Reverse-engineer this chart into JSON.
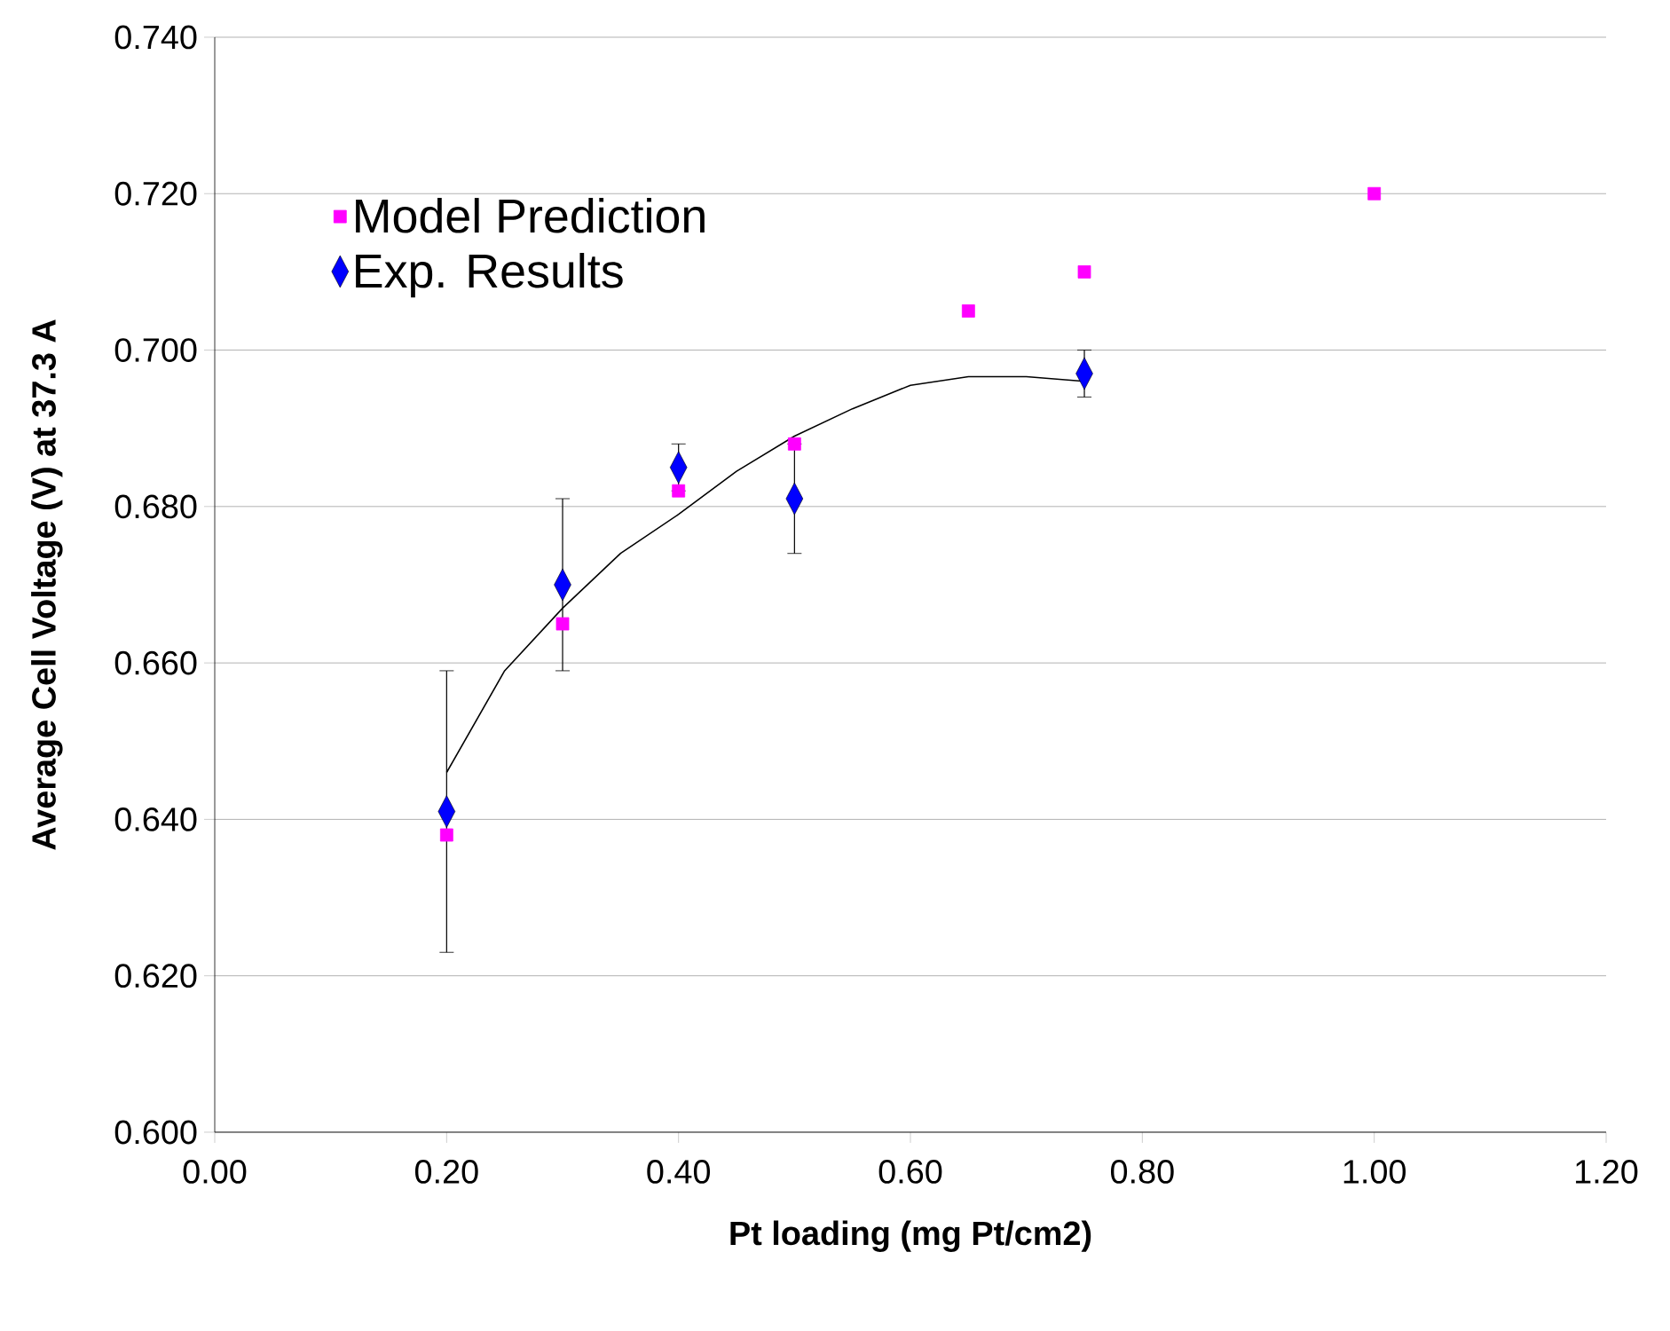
{
  "chart_data": {
    "type": "scatter",
    "xlabel": "Pt loading (mg Pt/cm2)",
    "ylabel": "Average Cell Voltage (V) at 37.3 A",
    "xlim": [
      0,
      1.2
    ],
    "ylim": [
      0.6,
      0.74
    ],
    "xticks": [
      {
        "value": 0,
        "label": "0.00"
      },
      {
        "value": 0.2,
        "label": "0.20"
      },
      {
        "value": 0.4,
        "label": "0.40"
      },
      {
        "value": 0.6,
        "label": "0.60"
      },
      {
        "value": 0.8,
        "label": "0.80"
      },
      {
        "value": 1.0,
        "label": "1.00"
      },
      {
        "value": 1.2,
        "label": "1.20"
      }
    ],
    "yticks": [
      {
        "value": 0.6,
        "label": "0.600"
      },
      {
        "value": 0.62,
        "label": "0.620"
      },
      {
        "value": 0.64,
        "label": "0.640"
      },
      {
        "value": 0.66,
        "label": "0.660"
      },
      {
        "value": 0.68,
        "label": "0.680"
      },
      {
        "value": 0.7,
        "label": "0.700"
      },
      {
        "value": 0.72,
        "label": "0.720"
      },
      {
        "value": 0.74,
        "label": "0.740"
      }
    ],
    "grid": "y",
    "legend": "top left",
    "series": [
      {
        "name": "Model Prediction",
        "marker": "square",
        "color": "#ff00ff",
        "x": [
          0.2,
          0.3,
          0.4,
          0.5,
          0.65,
          0.75,
          1.0
        ],
        "values": [
          0.638,
          0.665,
          0.682,
          0.688,
          0.705,
          0.71,
          0.72
        ]
      },
      {
        "name": "Exp. Results",
        "marker": "diamond",
        "color": "#0000ff",
        "x": [
          0.2,
          0.3,
          0.4,
          0.5,
          0.75
        ],
        "values": [
          0.641,
          0.67,
          0.685,
          0.681,
          0.697
        ],
        "errors": [
          0.018,
          0.011,
          0.003,
          0.007,
          0.003
        ]
      },
      {
        "type": "line",
        "marker": "none",
        "color": "#000000",
        "x": [
          0.2,
          0.25,
          0.3,
          0.35,
          0.4,
          0.45,
          0.5,
          0.55,
          0.6,
          0.65,
          0.7,
          0.75
        ],
        "values": [
          0.646,
          0.659,
          0.667,
          0.674,
          0.679,
          0.6845,
          0.689,
          0.6925,
          0.6955,
          0.6966,
          0.6966,
          0.696
        ]
      }
    ]
  }
}
